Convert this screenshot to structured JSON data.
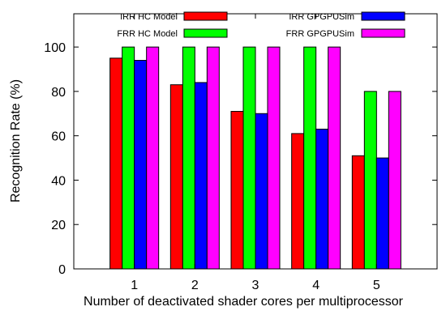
{
  "chart_data": {
    "type": "bar",
    "xlabel": "Number of deactivated shader cores per multiprocessor",
    "ylabel": "Recognition Rate (%)",
    "ylim": [
      0,
      115
    ],
    "yticks": [
      0,
      20,
      40,
      60,
      80,
      100
    ],
    "categories": [
      "1",
      "2",
      "3",
      "4",
      "5"
    ],
    "grid": false,
    "legend_placement": "top",
    "series": [
      {
        "name": "IRR HC Model",
        "color": "#ff0000",
        "values": [
          95,
          83,
          71,
          61,
          51
        ]
      },
      {
        "name": "FRR HC Model",
        "color": "#00ff00",
        "values": [
          100,
          100,
          100,
          100,
          80
        ]
      },
      {
        "name": "IRR GPGPUSim",
        "color": "#0000ff",
        "values": [
          94,
          84,
          70,
          63,
          50
        ]
      },
      {
        "name": "FRR GPGPUSim",
        "color": "#ff00ff",
        "values": [
          100,
          100,
          100,
          100,
          80
        ]
      }
    ]
  }
}
